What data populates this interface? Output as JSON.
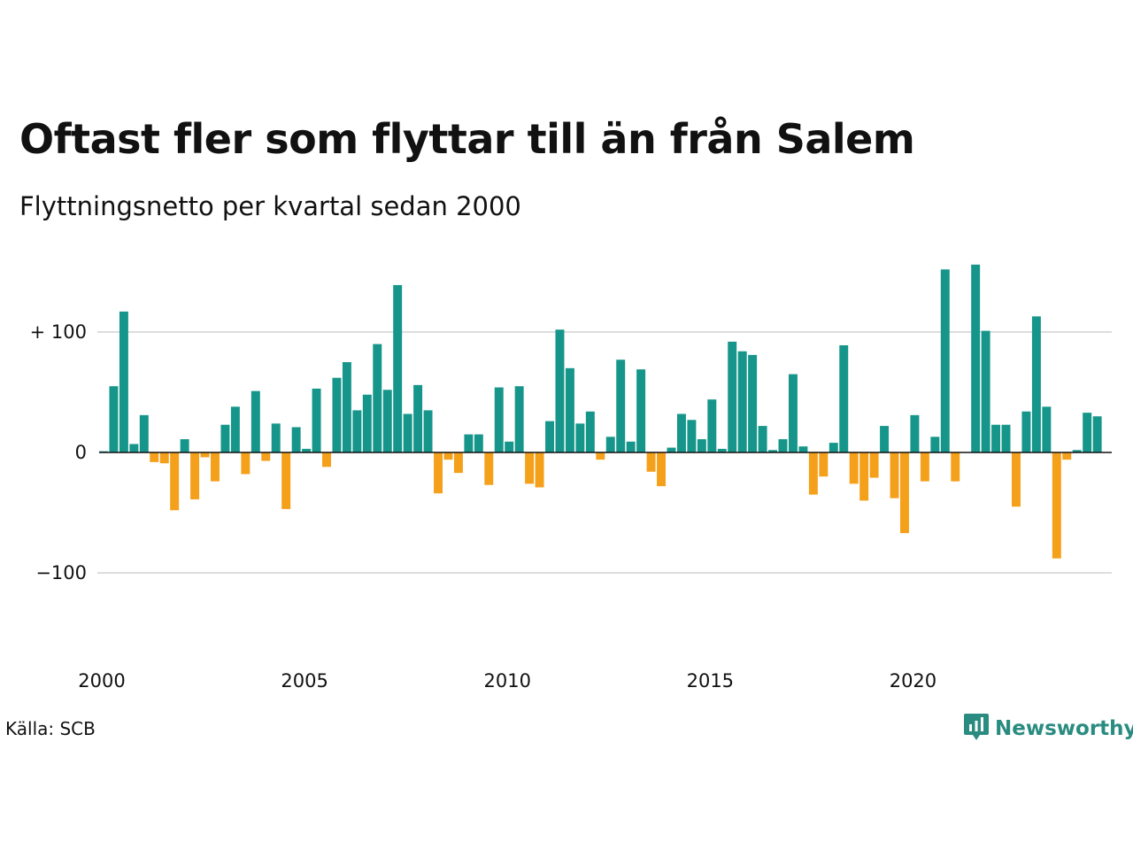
{
  "title": "Oftast fler som flyttar till än från Salem",
  "subtitle": "Flyttningsnetto per kvartal sedan 2000",
  "source": "Källa: SCB",
  "brand": {
    "name": "Newsworthy",
    "icon": "newsworthy-logo-icon",
    "color": "#2a8c80"
  },
  "colors": {
    "positive": "#16968a",
    "negative": "#f5a01a",
    "grid": "#dddddd",
    "zero": "#111111"
  },
  "chart_data": {
    "type": "bar",
    "x_start": 2000,
    "periods_per_year": 4,
    "xticks": [
      "2000",
      "2005",
      "2010",
      "2015",
      "2020"
    ],
    "yticks": [
      {
        "value": 100,
        "label": "+ 100"
      },
      {
        "value": 0,
        "label": "0"
      },
      {
        "value": -100,
        "label": "−100"
      }
    ],
    "ylim": [
      -160,
      160
    ],
    "grid": true,
    "values": [
      1,
      55,
      117,
      7,
      31,
      -8,
      -9,
      -48,
      11,
      -39,
      -4,
      -24,
      23,
      38,
      -18,
      51,
      -7,
      24,
      -47,
      21,
      3,
      53,
      -12,
      62,
      75,
      35,
      48,
      90,
      52,
      139,
      32,
      56,
      35,
      -34,
      -6,
      -17,
      15,
      15,
      -27,
      54,
      9,
      55,
      -26,
      -29,
      26,
      102,
      70,
      24,
      34,
      -6,
      13,
      77,
      9,
      69,
      -16,
      -28,
      4,
      32,
      27,
      11,
      44,
      3,
      92,
      84,
      81,
      22,
      2,
      11,
      65,
      5,
      -35,
      -20,
      8,
      89,
      -26,
      -40,
      -21,
      22,
      -38,
      -67,
      31,
      -24,
      13,
      152,
      -24,
      0,
      156,
      101,
      23,
      23,
      -45,
      34,
      113,
      38,
      -88,
      -6,
      2,
      33,
      30
    ]
  }
}
